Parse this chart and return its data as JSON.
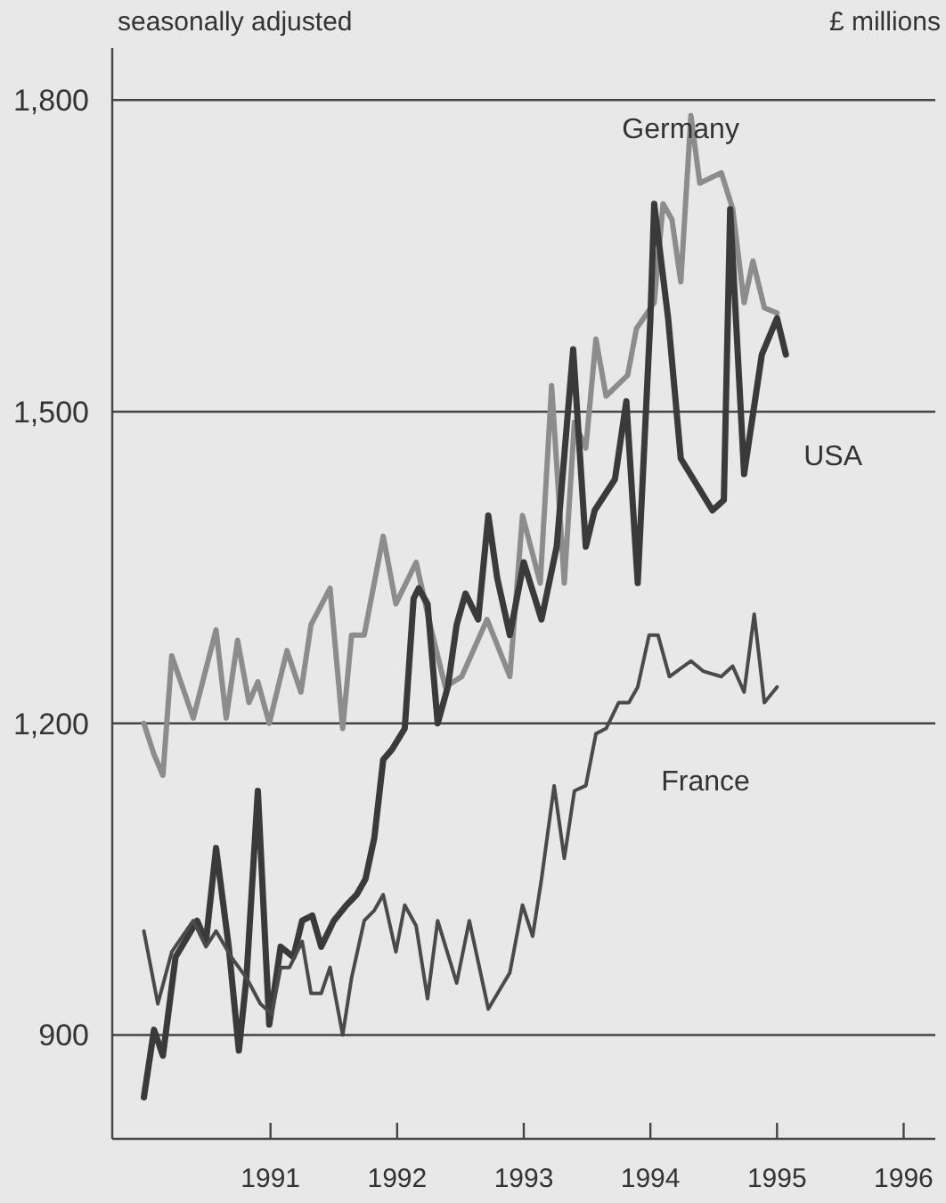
{
  "chart_data": {
    "type": "line",
    "subtitle": "seasonally adjusted",
    "ylabel": "£ millions",
    "xlim": [
      1989.75,
      1996.25
    ],
    "xticks": [
      1991,
      1992,
      1993,
      1994,
      1995,
      1996
    ],
    "ylim": [
      800,
      1850
    ],
    "yticks": [
      {
        "value": 900,
        "label": "900"
      },
      {
        "value": 1200,
        "label": "1,200"
      },
      {
        "value": 1500,
        "label": "1,500"
      },
      {
        "value": 1800,
        "label": "1,800"
      }
    ],
    "grid": "y",
    "legend": false,
    "marker": "none",
    "line_style": "solid",
    "series": [
      {
        "name": "Germany",
        "color": "#8c8c8c",
        "x": [
          1990.0,
          1990.08,
          1990.15,
          1990.22,
          1990.39,
          1990.57,
          1990.65,
          1990.74,
          1990.83,
          1990.9,
          1990.99,
          1991.13,
          1991.24,
          1991.32,
          1991.47,
          1991.57,
          1991.64,
          1991.74,
          1991.89,
          1991.99,
          1992.15,
          1992.26,
          1992.38,
          1992.51,
          1992.71,
          1992.89,
          1992.99,
          1993.13,
          1993.22,
          1993.32,
          1993.4,
          1993.49,
          1993.57,
          1993.65,
          1993.82,
          1993.89,
          1994.03,
          1994.1,
          1994.17,
          1994.24,
          1994.32,
          1994.39,
          1994.56,
          1994.65,
          1994.74,
          1994.81,
          1994.9,
          1995.0
        ],
        "values": [
          1200,
          1170,
          1150,
          1265,
          1205,
          1290,
          1205,
          1280,
          1220,
          1240,
          1200,
          1270,
          1230,
          1295,
          1330,
          1195,
          1285,
          1285,
          1380,
          1315,
          1355,
          1295,
          1235,
          1245,
          1300,
          1245,
          1400,
          1335,
          1525,
          1335,
          1490,
          1465,
          1570,
          1515,
          1535,
          1580,
          1605,
          1700,
          1685,
          1625,
          1785,
          1720,
          1730,
          1695,
          1605,
          1645,
          1600,
          1595
        ]
      },
      {
        "name": "USA",
        "color": "#3a3a3a",
        "x": [
          1990.0,
          1990.08,
          1990.15,
          1990.25,
          1990.42,
          1990.49,
          1990.57,
          1990.67,
          1990.75,
          1990.81,
          1990.9,
          1990.99,
          1991.08,
          1991.18,
          1991.25,
          1991.33,
          1991.4,
          1991.5,
          1991.6,
          1991.68,
          1991.75,
          1991.82,
          1991.89,
          1991.96,
          1992.06,
          1992.13,
          1992.17,
          1992.24,
          1992.32,
          1992.4,
          1992.47,
          1992.54,
          1992.64,
          1992.72,
          1992.79,
          1992.89,
          1993.0,
          1993.14,
          1993.26,
          1993.39,
          1993.49,
          1993.56,
          1993.72,
          1993.81,
          1993.9,
          1994.0,
          1994.03,
          1994.14,
          1994.24,
          1994.49,
          1994.58,
          1994.63,
          1994.74,
          1994.88,
          1995.0,
          1995.07
        ],
        "values": [
          840,
          905,
          880,
          975,
          1010,
          990,
          1080,
          985,
          885,
          955,
          1135,
          910,
          985,
          975,
          1010,
          1015,
          985,
          1010,
          1025,
          1035,
          1050,
          1090,
          1165,
          1175,
          1195,
          1320,
          1330,
          1315,
          1200,
          1235,
          1295,
          1325,
          1300,
          1400,
          1340,
          1285,
          1355,
          1300,
          1370,
          1560,
          1370,
          1405,
          1435,
          1510,
          1335,
          1590,
          1700,
          1590,
          1455,
          1405,
          1415,
          1695,
          1440,
          1555,
          1590,
          1555
        ]
      },
      {
        "name": "France",
        "color": "#4a4a4a",
        "x": [
          1990.0,
          1990.11,
          1990.22,
          1990.39,
          1990.49,
          1990.57,
          1990.69,
          1990.81,
          1990.92,
          1991.01,
          1991.08,
          1991.15,
          1991.25,
          1991.32,
          1991.4,
          1991.47,
          1991.57,
          1991.64,
          1991.74,
          1991.82,
          1991.89,
          1991.99,
          1992.06,
          1992.15,
          1992.24,
          1992.32,
          1992.47,
          1992.57,
          1992.72,
          1992.89,
          1992.99,
          1993.07,
          1993.14,
          1993.24,
          1993.32,
          1993.4,
          1993.49,
          1993.57,
          1993.65,
          1993.75,
          1993.83,
          1993.9,
          1993.99,
          1994.06,
          1994.15,
          1994.32,
          1994.42,
          1994.56,
          1994.65,
          1994.74,
          1994.82,
          1994.9,
          1995.0
        ],
        "values": [
          1000,
          930,
          980,
          1010,
          985,
          1000,
          975,
          955,
          930,
          920,
          965,
          965,
          990,
          940,
          940,
          965,
          900,
          955,
          1010,
          1020,
          1035,
          980,
          1025,
          1005,
          935,
          1010,
          950,
          1010,
          925,
          960,
          1025,
          995,
          1050,
          1140,
          1070,
          1135,
          1140,
          1190,
          1195,
          1220,
          1220,
          1235,
          1285,
          1285,
          1245,
          1260,
          1250,
          1245,
          1255,
          1230,
          1305,
          1220,
          1235
        ]
      }
    ]
  }
}
